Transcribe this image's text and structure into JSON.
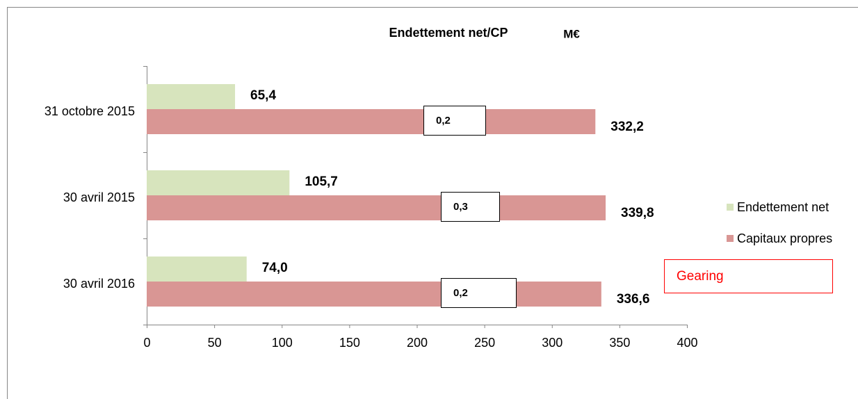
{
  "chart_data": {
    "type": "bar",
    "orientation": "horizontal",
    "title": "Endettement net/CP",
    "unit": "M€",
    "categories": [
      "31 octobre 2015",
      "30 avril 2015",
      "30 avril 2016"
    ],
    "series": [
      {
        "name": "Endettement net",
        "color": "#d7e4bd",
        "values": [
          65.4,
          105.7,
          74.0
        ],
        "value_labels": [
          "65,4",
          "105,7",
          "74,0"
        ]
      },
      {
        "name": "Capitaux propres",
        "color": "#d99694",
        "values": [
          332.2,
          339.8,
          336.6
        ],
        "value_labels": [
          "332,2",
          "339,8",
          "336,6"
        ]
      }
    ],
    "gearing": {
      "name": "Gearing",
      "values": [
        0.2,
        0.3,
        0.2
      ],
      "value_labels": [
        "0,2",
        "0,3",
        "0,2"
      ]
    },
    "xlim": [
      0,
      400
    ],
    "xticks": [
      0,
      50,
      100,
      150,
      200,
      250,
      300,
      350,
      400
    ]
  }
}
